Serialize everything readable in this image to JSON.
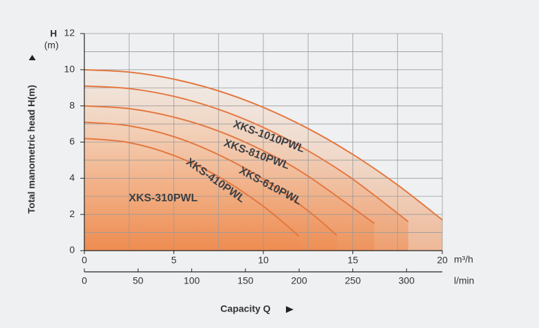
{
  "chart_data": {
    "type": "line",
    "x_label": "Capacity Q",
    "y_label": "Total manometric head H(m)",
    "y_unit_symbol": "H",
    "y_unit": "(m)",
    "x_unit": "m³/h",
    "x2_unit": "l/min",
    "xlim": [
      0,
      20
    ],
    "xticks": [
      0,
      5,
      10,
      15,
      20
    ],
    "xgrid": [
      0,
      2.5,
      5,
      7.5,
      10,
      12.5,
      15,
      17.5,
      20
    ],
    "ylim": [
      0,
      12
    ],
    "yticks": [
      0,
      2,
      4,
      6,
      8,
      10,
      12
    ],
    "ygrid": [
      0,
      1,
      2,
      3,
      4,
      5,
      6,
      7,
      8,
      9,
      10,
      11,
      12
    ],
    "x2lim": [
      0,
      333.33
    ],
    "x2ticks": [
      0,
      50,
      100,
      150,
      200,
      250,
      300
    ],
    "color": "#e4773f",
    "series": [
      {
        "name": "XKS-1010PWL",
        "x": [
          0,
          2.5,
          5,
          7.5,
          10,
          12.5,
          15,
          17.5,
          20
        ],
        "values": [
          10,
          9.87,
          9.48,
          8.83,
          7.92,
          6.75,
          5.32,
          3.63,
          1.7
        ]
      },
      {
        "name": "XKS-810PWL",
        "x": [
          0,
          2.5,
          5,
          7.5,
          10,
          12.5,
          15,
          18.1
        ],
        "values": [
          9.1,
          8.96,
          8.53,
          7.81,
          6.81,
          5.52,
          3.95,
          1.6
        ]
      },
      {
        "name": "XKS-610PWL",
        "x": [
          0,
          2.5,
          5,
          7.5,
          10,
          12.5,
          16.2
        ],
        "values": [
          8.0,
          7.85,
          7.38,
          6.61,
          5.52,
          4.12,
          1.5
        ]
      },
      {
        "name": "XKS-410PWL",
        "x": [
          0,
          2.5,
          5,
          7.5,
          10,
          12.5,
          14.1
        ],
        "values": [
          7.1,
          6.9,
          6.3,
          5.3,
          3.96,
          2.2,
          0.85
        ]
      },
      {
        "name": "XKS-310PWL",
        "x": [
          0,
          2.5,
          5,
          7.5,
          10,
          12
        ],
        "values": [
          6.2,
          5.97,
          5.26,
          4.09,
          2.45,
          0.8
        ]
      }
    ]
  }
}
